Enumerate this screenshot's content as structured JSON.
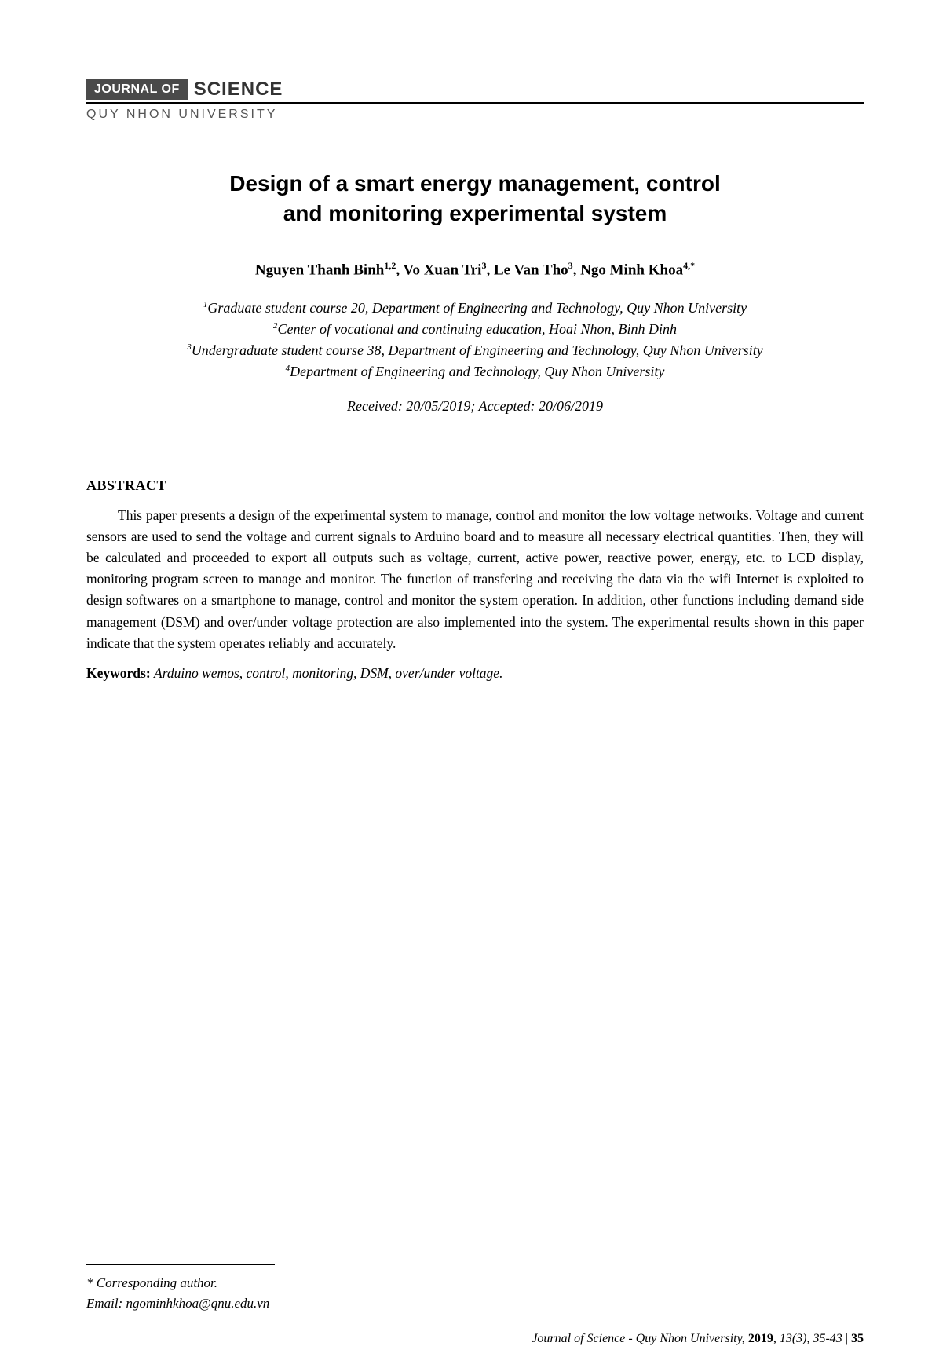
{
  "journal": {
    "badge": "JOURNAL OF",
    "science": "SCIENCE",
    "university": "QUY NHON UNIVERSITY"
  },
  "title_line1": "Design of a smart energy management, control",
  "title_line2": "and monitoring experimental system",
  "authors_html": "Nguyen Thanh Binh<sup>1,2</sup>, Vo Xuan Tri<sup>3</sup>, Le Van Tho<sup>3</sup>, Ngo Minh Khoa<sup>4,*</sup>",
  "affiliations": {
    "a1": "Graduate student course 20, Department of Engineering and Technology, Quy Nhon University",
    "a2": "Center of vocational and continuing education, Hoai Nhon, Binh Dinh",
    "a3": "Undergraduate student course 38, Department of Engineering and Technology, Quy Nhon University",
    "a4": "Department of Engineering and Technology, Quy Nhon University"
  },
  "dates": "Received: 20/05/2019; Accepted: 20/06/2019",
  "abstract": {
    "heading": "ABSTRACT",
    "body": "This paper presents a design of the experimental system to manage, control and monitor the low voltage networks. Voltage and current sensors are used to send the voltage and current signals to Arduino board and to measure all necessary electrical quantities. Then, they will be calculated and proceeded to export all outputs such as voltage, current, active power, reactive power, energy, etc. to LCD display, monitoring program screen to manage and monitor. The function of transfering and receiving the data via the wifi Internet is exploited to design softwares on a smartphone to manage, control and monitor the system operation. In addition, other functions including demand side management (DSM) and over/under voltage protection are also implemented into the system. The experimental results shown in this paper indicate that the system operates reliably and accurately."
  },
  "keywords": {
    "label": "Keywords: ",
    "value": "Arduino wemos, control, monitoring, DSM, over/under voltage."
  },
  "corresponding": {
    "label": "* Corresponding author.",
    "email": "Email: ngominhkhoa@qnu.edu.vn"
  },
  "footer": {
    "journal": "Journal of Science - Quy Nhon University, ",
    "year": "2019",
    "issue": ", 13(3), 35-43",
    "sep": "  |  ",
    "page": "35"
  },
  "colors": {
    "badge_bg": "#4a4a4a",
    "text": "#000000",
    "muted": "#555555"
  },
  "typography": {
    "title_fontsize": 28,
    "authors_fontsize": 19,
    "body_fontsize": 17.5,
    "footer_fontsize": 16
  }
}
